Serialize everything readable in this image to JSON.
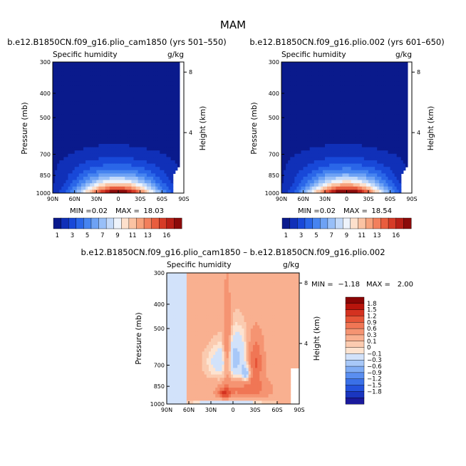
{
  "figure": {
    "season_title": "MAM",
    "colors": {
      "levels_positive": [
        "#0a1a8c",
        "#1030b8",
        "#1848d8",
        "#2a66e8",
        "#4684f0",
        "#6ea2f4",
        "#98bff8",
        "#c4daf9",
        "#eef3fb",
        "#fde0cc",
        "#fbc3a3",
        "#f7a27c",
        "#f27f5c",
        "#e85d3e",
        "#d63b27",
        "#b81f17",
        "#8b0a0a"
      ],
      "levels_diff": [
        "#1a1a9c",
        "#1a36c0",
        "#2452dc",
        "#3a70e8",
        "#5a8ef0",
        "#80acf4",
        "#a8c8f8",
        "#d2e2fa",
        "#fde3d0",
        "#fbcbb0",
        "#f9b090",
        "#f59472",
        "#f07655",
        "#e65538",
        "#d43220",
        "#b8140c",
        "#8b0505"
      ]
    }
  },
  "chart_data": [
    {
      "type": "heatmap",
      "title": "b.e12.B1850CN.f09_g16.plio_cam1850 (yrs 501–550)",
      "subtitle_left": "Specific humidity",
      "subtitle_right": "g/kg",
      "ylabel": "Pressure (mb)",
      "ylabel_right": "Height (km)",
      "x_ticks": [
        "90N",
        "60N",
        "30N",
        "0",
        "30S",
        "60S",
        "90S"
      ],
      "y_ticks": [
        300,
        400,
        500,
        700,
        850,
        1000
      ],
      "y_right_ticks": [
        8,
        4
      ],
      "stats": {
        "min_label": "MIN =",
        "min": "0.02",
        "max_label": "MAX =",
        "max": "18.03"
      },
      "peak": 18.03,
      "colorbar_labels": [
        "1",
        "3",
        "5",
        "7",
        "9",
        "11",
        "13",
        "16"
      ]
    },
    {
      "type": "heatmap",
      "title": "b.e12.B1850CN.f09_g16.plio.002 (yrs 601–650)",
      "subtitle_left": "Specific humidity",
      "subtitle_right": "g/kg",
      "ylabel": "Pressure (mb)",
      "ylabel_right": "Height (km)",
      "x_ticks": [
        "90N",
        "60N",
        "30N",
        "0",
        "30S",
        "60S",
        "90S"
      ],
      "y_ticks": [
        300,
        400,
        500,
        700,
        850,
        1000
      ],
      "y_right_ticks": [
        8,
        4
      ],
      "stats": {
        "min_label": "MIN =",
        "min": "0.02",
        "max_label": "MAX =",
        "max": "18.54"
      },
      "peak": 18.54,
      "colorbar_labels": [
        "1",
        "3",
        "5",
        "7",
        "9",
        "11",
        "13",
        "16"
      ]
    },
    {
      "type": "heatmap",
      "title": "b.e12.B1850CN.f09_g16.plio_cam1850 – b.e12.B1850CN.f09_g16.plio.002",
      "subtitle_left": "Specific humidity",
      "subtitle_right": "g/kg",
      "ylabel": "Pressure (mb)",
      "ylabel_right": "Height (km)",
      "x_ticks": [
        "90N",
        "60N",
        "30N",
        "0",
        "30S",
        "60S",
        "90S"
      ],
      "y_ticks": [
        300,
        400,
        500,
        700,
        850,
        1000
      ],
      "y_right_ticks": [
        8,
        4
      ],
      "stats": {
        "min_label": "MIN =",
        "min": "−1.18",
        "max_label": "MAX =",
        "max": "2.00"
      },
      "colorbar_labels": [
        "1.8",
        "1.5",
        "1.2",
        "0.9",
        "0.6",
        "0.3",
        "0.1",
        "0",
        "−0.1",
        "−0.3",
        "−0.6",
        "−0.9",
        "−1.2",
        "−1.5",
        "−1.8"
      ]
    }
  ]
}
